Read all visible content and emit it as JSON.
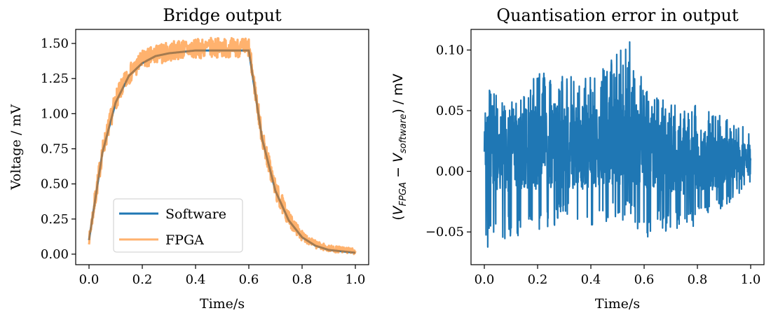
{
  "chart_data": [
    {
      "type": "line",
      "title": "Bridge output",
      "xlabel": "Time/s",
      "ylabel": "Voltage / mV",
      "xlim": [
        -0.05,
        1.05
      ],
      "ylim": [
        -0.075,
        1.6
      ],
      "xticks": [
        0.0,
        0.2,
        0.4,
        0.6,
        0.8,
        1.0
      ],
      "yticks": [
        0.0,
        0.25,
        0.5,
        0.75,
        1.0,
        1.25,
        1.5
      ],
      "x_tick_labels": [
        "0.0",
        "0.2",
        "0.4",
        "0.6",
        "0.8",
        "1.0"
      ],
      "y_tick_labels": [
        "0.00",
        "0.25",
        "0.50",
        "0.75",
        "1.00",
        "1.25",
        "1.50"
      ],
      "grid": false,
      "legend_position": "lower-center",
      "series": [
        {
          "name": "Software",
          "color": "#1f77b4",
          "x": [
            0.0,
            0.05,
            0.1,
            0.15,
            0.2,
            0.25,
            0.3,
            0.35,
            0.4,
            0.45,
            0.5,
            0.55,
            0.6,
            0.65,
            0.7,
            0.75,
            0.8,
            0.85,
            0.9,
            0.95,
            1.0
          ],
          "y": [
            0.1,
            0.72,
            1.08,
            1.27,
            1.36,
            1.41,
            1.43,
            1.44,
            1.45,
            1.45,
            1.45,
            1.45,
            1.45,
            0.82,
            0.45,
            0.24,
            0.12,
            0.06,
            0.03,
            0.02,
            0.01
          ]
        },
        {
          "name": "FPGA",
          "color": "#ff7f0e",
          "opacity": 0.6,
          "noise_amplitude": 0.07,
          "x": [
            0.0,
            0.05,
            0.1,
            0.15,
            0.2,
            0.25,
            0.3,
            0.35,
            0.4,
            0.45,
            0.5,
            0.55,
            0.6,
            0.65,
            0.7,
            0.75,
            0.8,
            0.85,
            0.9,
            0.95,
            1.0
          ],
          "y": [
            0.1,
            0.73,
            1.1,
            1.28,
            1.38,
            1.42,
            1.44,
            1.46,
            1.46,
            1.47,
            1.47,
            1.47,
            1.47,
            0.83,
            0.46,
            0.25,
            0.13,
            0.07,
            0.04,
            0.03,
            0.02
          ]
        }
      ]
    },
    {
      "type": "line",
      "title": "Quantisation error in output",
      "xlabel": "Time/s",
      "ylabel": "(V_FPGA − V_software) / mV",
      "ylabel_parts": {
        "open": "(",
        "v1": "V",
        "sub1": "FPGA",
        "minus": " − ",
        "v2": "V",
        "sub2": "software",
        "close": ") / mV"
      },
      "xlim": [
        -0.05,
        1.05
      ],
      "ylim": [
        -0.077,
        0.117
      ],
      "xticks": [
        0.0,
        0.2,
        0.4,
        0.6,
        0.8,
        1.0
      ],
      "yticks": [
        -0.05,
        0.0,
        0.05,
        0.1
      ],
      "x_tick_labels": [
        "0.0",
        "0.2",
        "0.4",
        "0.6",
        "0.8",
        "1.0"
      ],
      "y_tick_labels": [
        "−0.05",
        "0.00",
        "0.05",
        "0.10"
      ],
      "grid": false,
      "series": [
        {
          "color": "#1f77b4",
          "x": [
            0.0,
            0.1,
            0.2,
            0.3,
            0.4,
            0.5,
            0.55,
            0.6,
            0.7,
            0.8,
            0.9,
            1.0
          ],
          "y_center": [
            0.02,
            0.015,
            0.02,
            0.02,
            0.02,
            0.025,
            0.03,
            0.02,
            0.01,
            0.008,
            0.008,
            0.01
          ],
          "y_min": [
            -0.065,
            -0.055,
            -0.05,
            -0.045,
            -0.045,
            -0.04,
            -0.045,
            -0.055,
            -0.05,
            -0.045,
            -0.03,
            -0.01
          ],
          "y_max": [
            0.07,
            0.06,
            0.08,
            0.085,
            0.08,
            0.1,
            0.108,
            0.07,
            0.055,
            0.055,
            0.045,
            0.035
          ]
        }
      ]
    }
  ]
}
